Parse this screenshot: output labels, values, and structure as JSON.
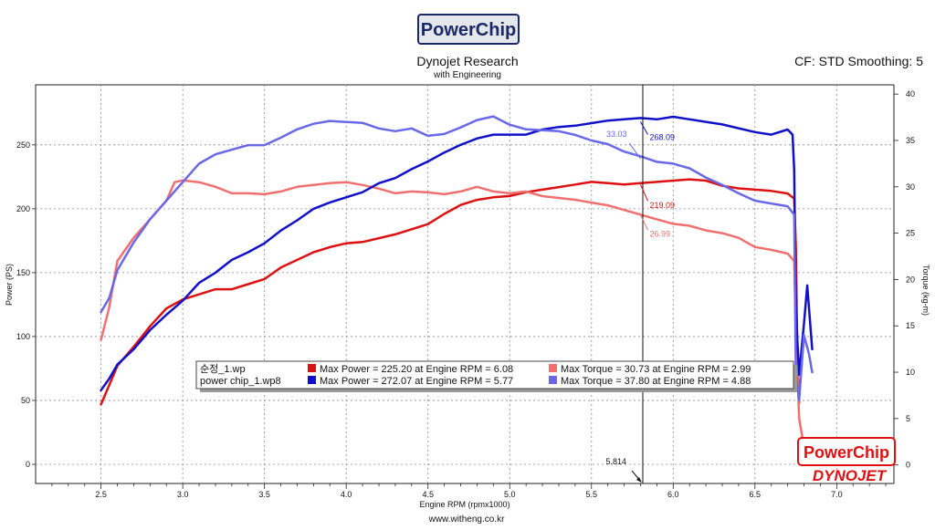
{
  "header": {
    "brand_logo_text": "PowerChip",
    "title": "Dynojet Research",
    "subtitle": "with Engineering",
    "settings": "CF: STD Smoothing: 5"
  },
  "footer": {
    "website": "www.witheng.co.kr",
    "brand_stamp": "PowerChip",
    "dynojet_logo": "DYNOJET"
  },
  "chart_data": {
    "type": "line",
    "xlabel": "Engine RPM (rpmx1000)",
    "ylabel_left": "Power (PS)",
    "ylabel_right": "Torque (kg-m)",
    "xlim": [
      2.1,
      7.35
    ],
    "ylim_left": [
      -15,
      297
    ],
    "ylim_right": [
      -2,
      41
    ],
    "x_ticks": [
      2.5,
      3.0,
      3.5,
      4.0,
      4.5,
      5.0,
      5.5,
      6.0,
      6.5,
      7.0
    ],
    "x_tick_labels": [
      "2.5",
      "3.0",
      "3.5",
      "4.0",
      "4.5",
      "5.0",
      "5.5",
      "6.0",
      "6.5",
      "7.0"
    ],
    "y_left_ticks": [
      0,
      50,
      100,
      150,
      200,
      250
    ],
    "y_left_tick_labels": [
      "0",
      "50",
      "100",
      "150",
      "200",
      "250"
    ],
    "y_right_ticks": [
      0,
      5,
      10,
      15,
      20,
      25,
      30,
      35,
      40
    ],
    "y_right_tick_labels": [
      "0",
      "5",
      "10",
      "15",
      "20",
      "25",
      "30",
      "35",
      "40"
    ],
    "grid": true,
    "cursor": {
      "x": 5.814,
      "label": "5.814"
    },
    "series": [
      {
        "name": "순정_1.wp",
        "measure": "Power",
        "axis": "left",
        "color": "#dd1111",
        "x": [
          2.5,
          2.55,
          2.6,
          2.7,
          2.8,
          2.9,
          3.0,
          3.1,
          3.2,
          3.3,
          3.4,
          3.5,
          3.6,
          3.7,
          3.8,
          3.9,
          4.0,
          4.1,
          4.2,
          4.3,
          4.4,
          4.5,
          4.6,
          4.7,
          4.8,
          4.9,
          5.0,
          5.1,
          5.2,
          5.3,
          5.4,
          5.5,
          5.6,
          5.7,
          5.8,
          5.9,
          6.0,
          6.1,
          6.2,
          6.3,
          6.4,
          6.5,
          6.6,
          6.7,
          6.74,
          6.75,
          6.76,
          6.77
        ],
        "y": [
          47,
          62,
          77,
          92,
          108,
          122,
          129,
          133,
          137,
          137,
          141,
          145,
          154,
          160,
          166,
          170,
          173,
          174,
          177,
          180,
          184,
          188,
          196,
          203,
          207,
          209,
          210,
          213,
          215,
          217,
          219,
          221,
          220,
          219,
          220,
          221,
          222,
          223,
          222,
          218,
          216,
          215,
          214,
          212,
          208,
          170,
          80,
          48
        ]
      },
      {
        "name": "순정_1.wp",
        "measure": "Torque",
        "axis": "right",
        "color": "#f07070",
        "x": [
          2.5,
          2.55,
          2.6,
          2.7,
          2.8,
          2.9,
          2.95,
          3.0,
          3.1,
          3.2,
          3.3,
          3.4,
          3.5,
          3.6,
          3.7,
          3.8,
          3.9,
          4.0,
          4.1,
          4.2,
          4.3,
          4.4,
          4.5,
          4.6,
          4.7,
          4.8,
          4.9,
          5.0,
          5.1,
          5.2,
          5.3,
          5.4,
          5.5,
          5.6,
          5.7,
          5.8,
          5.9,
          6.0,
          6.1,
          6.2,
          6.3,
          6.4,
          6.5,
          6.6,
          6.7,
          6.74,
          6.75,
          6.77,
          6.8
        ],
        "y": [
          13.5,
          17,
          22,
          24.5,
          26.5,
          28.5,
          30.5,
          30.7,
          30.5,
          30,
          29.3,
          29.3,
          29.2,
          29.5,
          30,
          30.2,
          30.4,
          30.5,
          30.2,
          29.8,
          29.3,
          29.5,
          29.4,
          29.2,
          29.5,
          30.0,
          29.5,
          29.3,
          29.5,
          29.0,
          28.8,
          28.6,
          28.3,
          28.0,
          27.5,
          27.0,
          26.5,
          26.0,
          25.8,
          25.3,
          25.0,
          24.5,
          23.5,
          23.2,
          22.8,
          22.0,
          15,
          5,
          2
        ]
      },
      {
        "name": "power chip_1.wp8",
        "measure": "Power",
        "axis": "left",
        "color": "#1010c8",
        "x": [
          2.5,
          2.55,
          2.6,
          2.7,
          2.8,
          2.9,
          3.0,
          3.1,
          3.2,
          3.3,
          3.4,
          3.5,
          3.6,
          3.7,
          3.8,
          3.9,
          4.0,
          4.1,
          4.2,
          4.3,
          4.4,
          4.5,
          4.6,
          4.7,
          4.8,
          4.9,
          5.0,
          5.1,
          5.2,
          5.3,
          5.4,
          5.5,
          5.6,
          5.7,
          5.8,
          5.9,
          6.0,
          6.1,
          6.2,
          6.3,
          6.4,
          6.5,
          6.6,
          6.7,
          6.73,
          6.74,
          6.75,
          6.77,
          6.8,
          6.82,
          6.85
        ],
        "y": [
          58,
          67,
          78,
          90,
          105,
          117,
          128,
          142,
          150,
          160,
          166,
          173,
          183,
          191,
          200,
          205,
          209,
          213,
          220,
          224,
          231,
          237,
          244,
          250,
          255,
          258,
          258,
          258,
          262,
          264,
          265,
          267,
          269,
          270,
          271,
          270,
          272,
          270,
          268,
          266,
          263,
          260,
          258,
          262,
          258,
          230,
          120,
          70,
          110,
          140,
          90
        ]
      },
      {
        "name": "power chip_1.wp8",
        "measure": "Torque",
        "axis": "right",
        "color": "#6868e8",
        "x": [
          2.5,
          2.55,
          2.6,
          2.7,
          2.8,
          2.9,
          3.0,
          3.1,
          3.2,
          3.3,
          3.4,
          3.5,
          3.6,
          3.7,
          3.8,
          3.9,
          4.0,
          4.1,
          4.2,
          4.3,
          4.4,
          4.5,
          4.6,
          4.7,
          4.8,
          4.9,
          5.0,
          5.1,
          5.2,
          5.3,
          5.4,
          5.5,
          5.6,
          5.7,
          5.8,
          5.9,
          6.0,
          6.1,
          6.2,
          6.3,
          6.4,
          6.5,
          6.6,
          6.7,
          6.74,
          6.75,
          6.77,
          6.8,
          6.83,
          6.85
        ],
        "y": [
          16.5,
          18,
          21,
          24,
          26.5,
          28.5,
          30.5,
          32.5,
          33.5,
          34.0,
          34.5,
          34.5,
          35.3,
          36.2,
          36.8,
          37.1,
          37.0,
          36.9,
          36.3,
          36.0,
          36.3,
          35.5,
          35.7,
          36.4,
          37.2,
          37.6,
          36.7,
          36.2,
          36.1,
          36.0,
          35.6,
          35.0,
          34.6,
          33.8,
          33.3,
          32.7,
          32.5,
          32.0,
          31.0,
          30.2,
          29.3,
          28.5,
          28.2,
          27.9,
          27.0,
          10,
          7,
          14,
          12,
          10
        ]
      }
    ],
    "legend": [
      {
        "file": "순정_1.wp",
        "power_text": "Max Power = 225.20 at Engine RPM = 6.08",
        "power_color": "#dd1111",
        "torque_text": "Max Torque = 30.73 at Engine RPM = 2.99",
        "torque_color": "#f07070"
      },
      {
        "file": "power chip_1.wp8",
        "power_text": "Max Power = 272.07 at Engine RPM = 5.77",
        "power_color": "#1010c8",
        "torque_text": "Max Torque = 37.80 at Engine RPM = 4.88",
        "torque_color": "#6868e8"
      }
    ],
    "annotations": [
      {
        "text": "268.09",
        "x": 5.8,
        "y": 268.09,
        "axis": "left",
        "color": "#1010c8",
        "dx": 10,
        "dy": 20,
        "anchor": "start"
      },
      {
        "text": "33.03",
        "x": 5.8,
        "y": 33.03,
        "axis": "right",
        "color": "#6868e8",
        "dx": -15,
        "dy": -24,
        "anchor": "end"
      },
      {
        "text": "219.09",
        "x": 5.8,
        "y": 219.09,
        "axis": "left",
        "color": "#dd1111",
        "dx": 10,
        "dy": 26,
        "anchor": "start"
      },
      {
        "text": "26.99",
        "x": 5.8,
        "y": 26.99,
        "axis": "right",
        "color": "#f07070",
        "dx": 10,
        "dy": 24,
        "anchor": "start"
      }
    ]
  }
}
